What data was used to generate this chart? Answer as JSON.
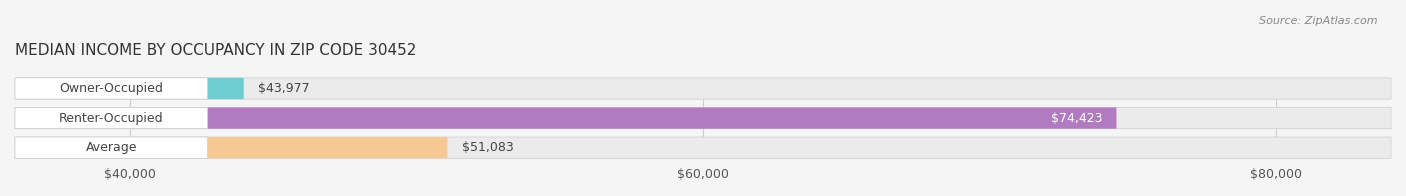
{
  "title": "MEDIAN INCOME BY OCCUPANCY IN ZIP CODE 30452",
  "source": "Source: ZipAtlas.com",
  "categories": [
    "Owner-Occupied",
    "Renter-Occupied",
    "Average"
  ],
  "values": [
    43977,
    74423,
    51083
  ],
  "bar_colors": [
    "#6dcdd0",
    "#b07bc0",
    "#f5c894"
  ],
  "bar_edge_colors": [
    "#5bbcbf",
    "#9968b0",
    "#e8b070"
  ],
  "value_labels": [
    "$43,977",
    "$74,423",
    "$51,083"
  ],
  "tick_labels": [
    "$40,000",
    "$60,000",
    "$80,000"
  ],
  "tick_values": [
    40000,
    60000,
    80000
  ],
  "xlim_min": 36000,
  "xlim_max": 84000,
  "background_color": "#f5f5f5",
  "bar_bg_color": "#ebebeb",
  "title_fontsize": 11,
  "label_fontsize": 9,
  "value_fontsize": 9,
  "tick_fontsize": 9
}
